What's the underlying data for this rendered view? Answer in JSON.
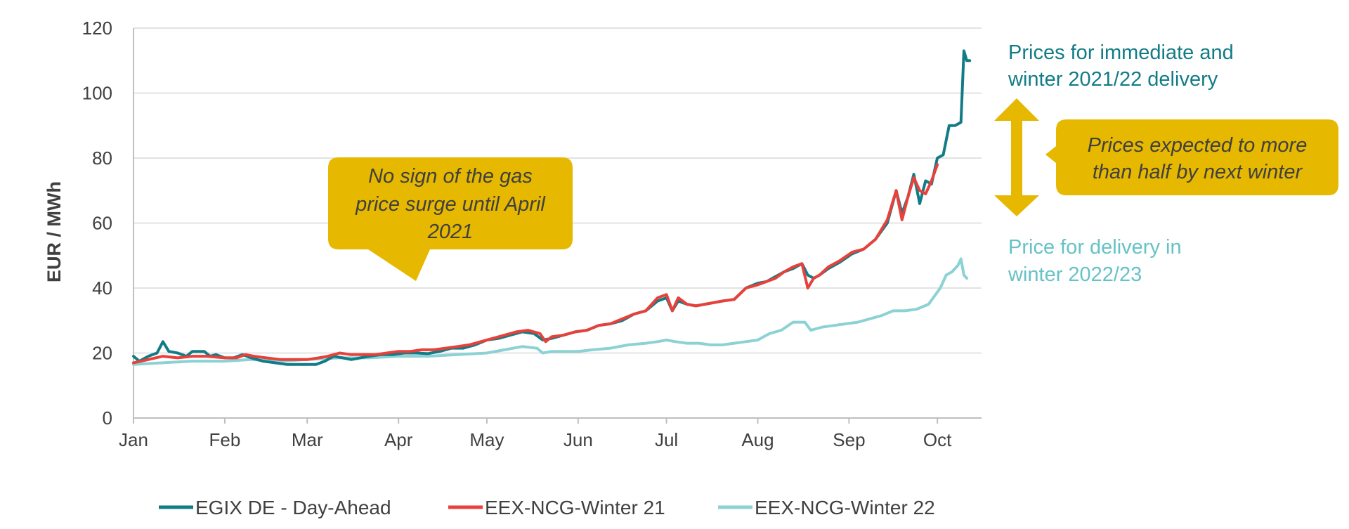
{
  "chart_data": {
    "type": "line",
    "ylabel": "EUR / MWh",
    "xlabel": "",
    "ylim": [
      0,
      120
    ],
    "yticks": [
      0,
      20,
      40,
      60,
      80,
      100,
      120
    ],
    "x_unit": "day of year 2021",
    "xlim": [
      0,
      288
    ],
    "x_ticks": [
      {
        "label": "Jan",
        "day": 0
      },
      {
        "label": "Feb",
        "day": 31
      },
      {
        "label": "Mar",
        "day": 59
      },
      {
        "label": "Apr",
        "day": 90
      },
      {
        "label": "May",
        "day": 120
      },
      {
        "label": "Jun",
        "day": 151
      },
      {
        "label": "Jul",
        "day": 181
      },
      {
        "label": "Aug",
        "day": 212
      },
      {
        "label": "Sep",
        "day": 243
      },
      {
        "label": "Oct",
        "day": 273
      }
    ],
    "grid": true,
    "legend_position": "bottom",
    "series": [
      {
        "name": "EGIX DE - Day-Ahead",
        "color": "#127c86",
        "points": [
          [
            0,
            19
          ],
          [
            2,
            17.5
          ],
          [
            5,
            19
          ],
          [
            8,
            20
          ],
          [
            10,
            23.5
          ],
          [
            12,
            20.5
          ],
          [
            15,
            20
          ],
          [
            18,
            19
          ],
          [
            20,
            20.5
          ],
          [
            24,
            20.5
          ],
          [
            26,
            19
          ],
          [
            28,
            19.5
          ],
          [
            31,
            18.5
          ],
          [
            34,
            18.5
          ],
          [
            37,
            19.5
          ],
          [
            40,
            18.5
          ],
          [
            44,
            17.5
          ],
          [
            48,
            17
          ],
          [
            52,
            16.5
          ],
          [
            56,
            16.5
          ],
          [
            59,
            16.5
          ],
          [
            62,
            16.5
          ],
          [
            65,
            17.5
          ],
          [
            68,
            19
          ],
          [
            71,
            18.5
          ],
          [
            74,
            18
          ],
          [
            77,
            18.5
          ],
          [
            80,
            19
          ],
          [
            84,
            19.5
          ],
          [
            88,
            19.5
          ],
          [
            92,
            20
          ],
          [
            96,
            20
          ],
          [
            100,
            19.8
          ],
          [
            104,
            20.5
          ],
          [
            108,
            21.5
          ],
          [
            112,
            21.5
          ],
          [
            116,
            22.5
          ],
          [
            120,
            24
          ],
          [
            124,
            24.5
          ],
          [
            128,
            25.5
          ],
          [
            132,
            26.5
          ],
          [
            136,
            26
          ],
          [
            139,
            24
          ],
          [
            142,
            24.5
          ],
          [
            146,
            25.5
          ],
          [
            150,
            26.5
          ],
          [
            154,
            27
          ],
          [
            158,
            28.5
          ],
          [
            162,
            29
          ],
          [
            166,
            30
          ],
          [
            170,
            32
          ],
          [
            174,
            33
          ],
          [
            178,
            36
          ],
          [
            181,
            37
          ],
          [
            183,
            33
          ],
          [
            185,
            36
          ],
          [
            188,
            35
          ],
          [
            191,
            34.5
          ],
          [
            194,
            35
          ],
          [
            197,
            35.5
          ],
          [
            200,
            36
          ],
          [
            204,
            36.5
          ],
          [
            208,
            40
          ],
          [
            212,
            41.5
          ],
          [
            215,
            42
          ],
          [
            218,
            43.5
          ],
          [
            221,
            45
          ],
          [
            224,
            46
          ],
          [
            227,
            47.5
          ],
          [
            229,
            44
          ],
          [
            231,
            43
          ],
          [
            233,
            44
          ],
          [
            236,
            46
          ],
          [
            240,
            48
          ],
          [
            244,
            50.5
          ],
          [
            248,
            52
          ],
          [
            252,
            55
          ],
          [
            256,
            60
          ],
          [
            259,
            70
          ],
          [
            261,
            63
          ],
          [
            263,
            68
          ],
          [
            265,
            75
          ],
          [
            267,
            66
          ],
          [
            269,
            73
          ],
          [
            271,
            72
          ],
          [
            273,
            80
          ],
          [
            275,
            81
          ],
          [
            277,
            90
          ],
          [
            279,
            90
          ],
          [
            281,
            91
          ],
          [
            282,
            113
          ],
          [
            283,
            110
          ],
          [
            284,
            110
          ]
        ]
      },
      {
        "name": "EEX-NCG-Winter 21",
        "color": "#e8403a",
        "points": [
          [
            0,
            17
          ],
          [
            5,
            18
          ],
          [
            10,
            19
          ],
          [
            15,
            18.5
          ],
          [
            20,
            19
          ],
          [
            25,
            19
          ],
          [
            31,
            18.5
          ],
          [
            35,
            18.5
          ],
          [
            38,
            19.5
          ],
          [
            41,
            19
          ],
          [
            45,
            18.5
          ],
          [
            50,
            18
          ],
          [
            55,
            18
          ],
          [
            59,
            18
          ],
          [
            63,
            18.5
          ],
          [
            66,
            19
          ],
          [
            70,
            20
          ],
          [
            74,
            19.5
          ],
          [
            78,
            19.5
          ],
          [
            82,
            19.5
          ],
          [
            86,
            20
          ],
          [
            90,
            20.5
          ],
          [
            94,
            20.5
          ],
          [
            98,
            21
          ],
          [
            102,
            21
          ],
          [
            106,
            21.5
          ],
          [
            110,
            22
          ],
          [
            114,
            22.5
          ],
          [
            118,
            23.5
          ],
          [
            122,
            24.5
          ],
          [
            126,
            25.5
          ],
          [
            130,
            26.5
          ],
          [
            134,
            27
          ],
          [
            138,
            26
          ],
          [
            140,
            23.5
          ],
          [
            142,
            25
          ],
          [
            146,
            25.5
          ],
          [
            150,
            26.5
          ],
          [
            154,
            27
          ],
          [
            158,
            28.5
          ],
          [
            162,
            29
          ],
          [
            166,
            30.5
          ],
          [
            170,
            32
          ],
          [
            174,
            33
          ],
          [
            178,
            37
          ],
          [
            181,
            38
          ],
          [
            183,
            33
          ],
          [
            185,
            37
          ],
          [
            188,
            35
          ],
          [
            191,
            34.5
          ],
          [
            194,
            35
          ],
          [
            197,
            35.5
          ],
          [
            200,
            36
          ],
          [
            204,
            36.5
          ],
          [
            208,
            40
          ],
          [
            212,
            41
          ],
          [
            215,
            42
          ],
          [
            218,
            43
          ],
          [
            221,
            45
          ],
          [
            224,
            46.5
          ],
          [
            227,
            47.5
          ],
          [
            229,
            40
          ],
          [
            231,
            43
          ],
          [
            233,
            44
          ],
          [
            236,
            46.5
          ],
          [
            240,
            48.5
          ],
          [
            244,
            51
          ],
          [
            248,
            52
          ],
          [
            252,
            55
          ],
          [
            256,
            61
          ],
          [
            259,
            70
          ],
          [
            261,
            61
          ],
          [
            263,
            68
          ],
          [
            265,
            74
          ],
          [
            267,
            70
          ],
          [
            269,
            69
          ],
          [
            271,
            73
          ],
          [
            273,
            78
          ]
        ]
      },
      {
        "name": "EEX-NCG-Winter 22",
        "color": "#8cd2d4",
        "points": [
          [
            0,
            16.5
          ],
          [
            10,
            17
          ],
          [
            20,
            17.5
          ],
          [
            31,
            17.5
          ],
          [
            40,
            18
          ],
          [
            50,
            17.5
          ],
          [
            59,
            18
          ],
          [
            70,
            18.5
          ],
          [
            80,
            18.5
          ],
          [
            90,
            19
          ],
          [
            100,
            19
          ],
          [
            110,
            19.5
          ],
          [
            120,
            20
          ],
          [
            126,
            21
          ],
          [
            132,
            22
          ],
          [
            137,
            21.5
          ],
          [
            139,
            20
          ],
          [
            142,
            20.5
          ],
          [
            146,
            20.5
          ],
          [
            151,
            20.5
          ],
          [
            156,
            21
          ],
          [
            162,
            21.5
          ],
          [
            168,
            22.5
          ],
          [
            174,
            23
          ],
          [
            178,
            23.5
          ],
          [
            181,
            24
          ],
          [
            184,
            23.5
          ],
          [
            188,
            23
          ],
          [
            192,
            23
          ],
          [
            196,
            22.5
          ],
          [
            200,
            22.5
          ],
          [
            204,
            23
          ],
          [
            208,
            23.5
          ],
          [
            212,
            24
          ],
          [
            216,
            26
          ],
          [
            220,
            27
          ],
          [
            224,
            29.5
          ],
          [
            228,
            29.5
          ],
          [
            230,
            27
          ],
          [
            234,
            28
          ],
          [
            238,
            28.5
          ],
          [
            242,
            29
          ],
          [
            246,
            29.5
          ],
          [
            250,
            30.5
          ],
          [
            254,
            31.5
          ],
          [
            258,
            33
          ],
          [
            262,
            33
          ],
          [
            266,
            33.5
          ],
          [
            270,
            35
          ],
          [
            274,
            40
          ],
          [
            276,
            44
          ],
          [
            278,
            45
          ],
          [
            280,
            47
          ],
          [
            281,
            49
          ],
          [
            282,
            44
          ],
          [
            283,
            43
          ]
        ]
      }
    ]
  },
  "annotations": {
    "callout_left": [
      "No sign of the gas",
      "price surge until April",
      "2021"
    ],
    "callout_right": [
      "Prices expected to more",
      "than half by next winter"
    ],
    "label_top": [
      "Prices for immediate and",
      "winter 2021/22 delivery"
    ],
    "label_bottom": [
      "Price for delivery in",
      "winter 2022/23"
    ],
    "callout_fill": "#e6b800",
    "label_top_color": "#127c86",
    "label_bottom_color": "#66c2c6"
  }
}
